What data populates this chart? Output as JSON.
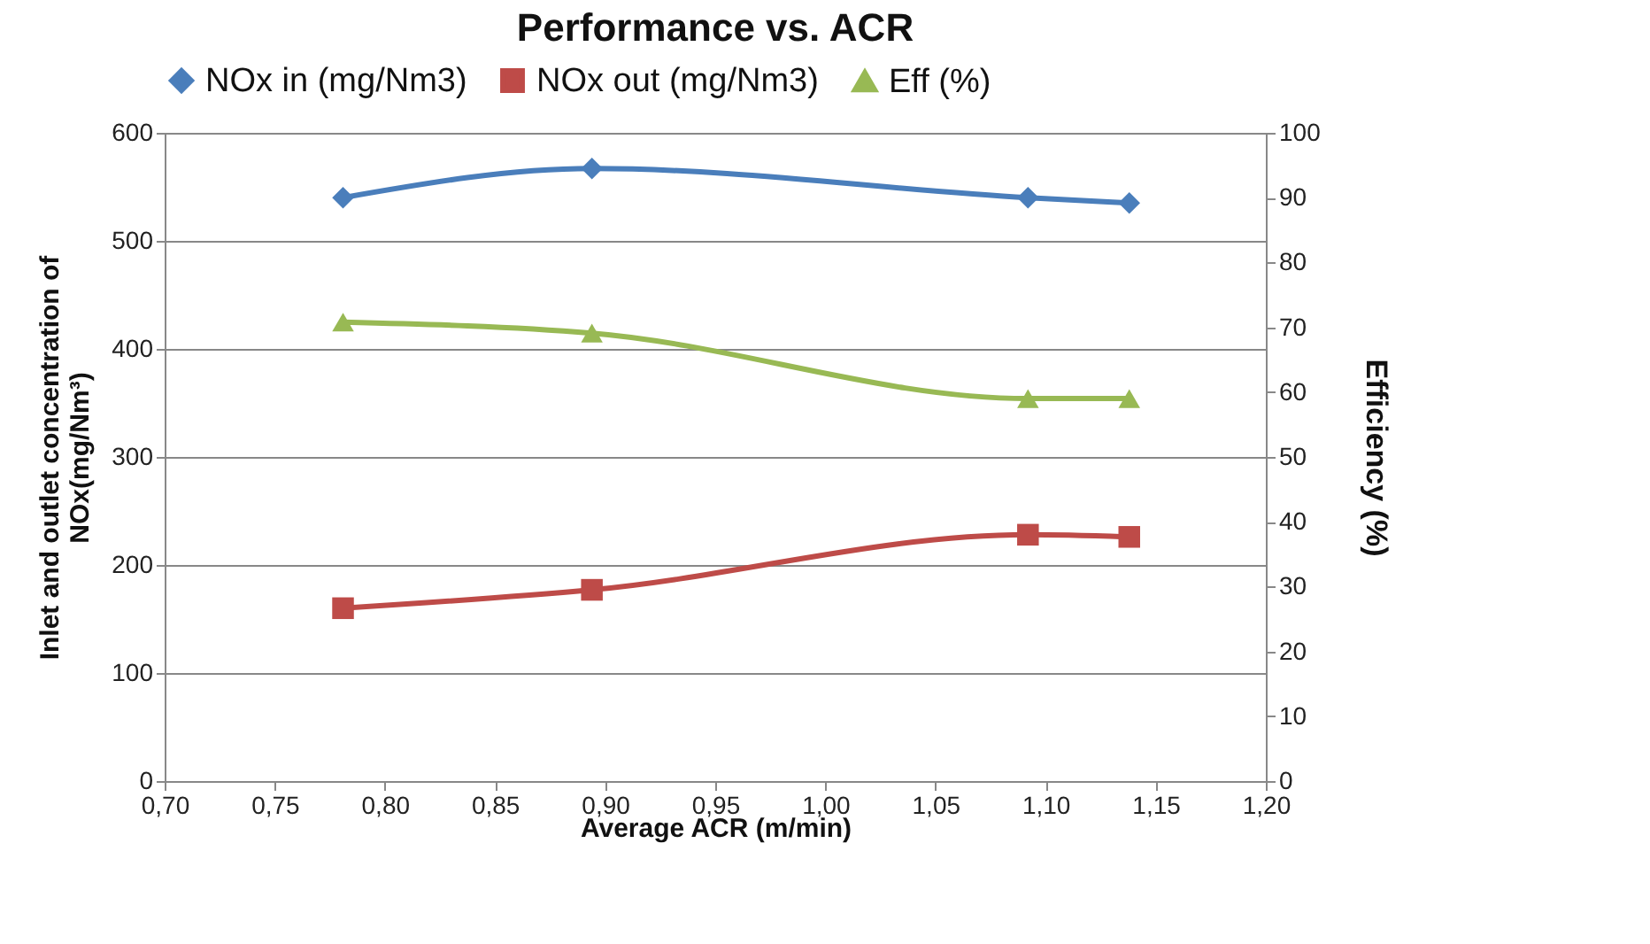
{
  "chart_data": {
    "type": "line",
    "title": "Performance vs. ACR",
    "xlabel": "Average ACR (m/min)",
    "ylabel": "Inlet and outlet concentration of\nNOx(mg/Nm³)",
    "y2label": "Efficiency (%)",
    "x": [
      0.781,
      0.894,
      1.092,
      1.138
    ],
    "series": [
      {
        "name": "NOx in (mg/Nm3)",
        "color": "#4a7ebb",
        "marker": "diamond",
        "values": [
          540,
          567,
          540,
          535
        ]
      },
      {
        "name": "NOx out (mg/Nm3)",
        "color": "#be4b48",
        "marker": "square",
        "values": [
          160,
          177,
          228,
          226
        ]
      },
      {
        "name": "Eff (%)",
        "color": "#98b954",
        "marker": "triangle",
        "axis": "y2",
        "values": [
          70.8,
          69.1,
          59,
          59
        ]
      }
    ],
    "xlim": [
      0.7,
      1.2
    ],
    "xticks": [
      {
        "value": 0.7,
        "label": "0,70"
      },
      {
        "value": 0.75,
        "label": "0,75"
      },
      {
        "value": 0.8,
        "label": "0,80"
      },
      {
        "value": 0.85,
        "label": "0,85"
      },
      {
        "value": 0.9,
        "label": "0,90"
      },
      {
        "value": 0.95,
        "label": "0,95"
      },
      {
        "value": 1.0,
        "label": "1,00"
      },
      {
        "value": 1.05,
        "label": "1,05"
      },
      {
        "value": 1.1,
        "label": "1,10"
      },
      {
        "value": 1.15,
        "label": "1,15"
      },
      {
        "value": 1.2,
        "label": "1,20"
      }
    ],
    "ylim": [
      0,
      600
    ],
    "yticks": [
      0,
      100,
      200,
      300,
      400,
      500,
      600
    ],
    "y2lim": [
      0,
      100
    ],
    "y2ticks": [
      0,
      10,
      20,
      30,
      40,
      50,
      60,
      70,
      80,
      90,
      100
    ],
    "grid": "y",
    "legend": "top",
    "line_style": "solid"
  }
}
